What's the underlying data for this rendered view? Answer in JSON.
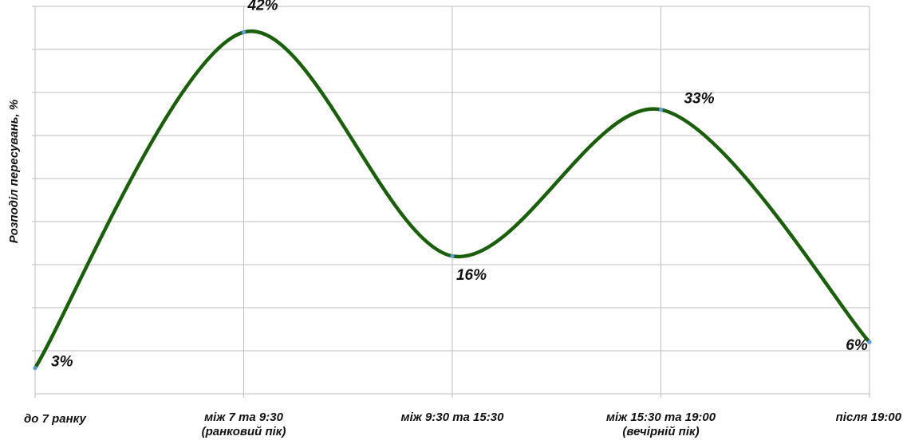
{
  "chart_data": {
    "type": "line",
    "title": "",
    "xlabel": "",
    "ylabel": "Розподіл пересувань, %",
    "categories": [
      [
        "до 7 ранку"
      ],
      [
        "між 7 та 9:30",
        "(ранковий пік)"
      ],
      [
        "між 9:30 та 15:30"
      ],
      [
        "між 15:30 та 19:00",
        "(вечірній пік)"
      ],
      [
        "після 19:00"
      ]
    ],
    "series": [
      {
        "values": [
          3,
          42,
          16,
          33,
          6
        ]
      }
    ],
    "data_labels": [
      "3%",
      "42%",
      "16%",
      "33%",
      "6%"
    ],
    "ylim": [
      0,
      45
    ],
    "smooth": true,
    "grid": true,
    "line_color": "#1b5e0b",
    "point_color": "#5b9bd5"
  }
}
